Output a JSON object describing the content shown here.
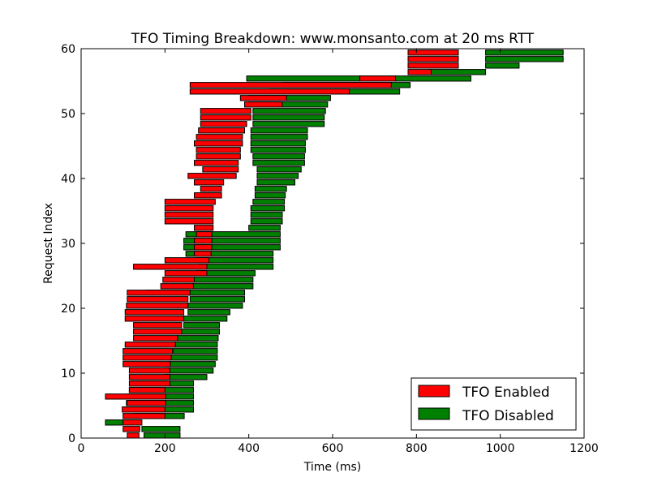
{
  "chart_data": {
    "type": "bar",
    "orientation": "horizontal",
    "title": "TFO Timing Breakdown: www.monsanto.com at 20 ms RTT",
    "xlabel": "Time (ms)",
    "ylabel": "Request Index",
    "xlim": [
      0,
      1200
    ],
    "ylim": [
      0,
      60
    ],
    "xticks": [
      0,
      200,
      400,
      600,
      800,
      1000,
      1200
    ],
    "yticks": [
      0,
      10,
      20,
      30,
      40,
      50,
      60
    ],
    "grid": false,
    "legend_position": "bottom-right",
    "series": [
      {
        "name": "TFO Disabled",
        "color": "#008000",
        "bars": [
          [
            0,
            150,
            236
          ],
          [
            1,
            145,
            236
          ],
          [
            2,
            58,
            100
          ],
          [
            3,
            125,
            246
          ],
          [
            4,
            100,
            268
          ],
          [
            5,
            108,
            268
          ],
          [
            6,
            110,
            268
          ],
          [
            7,
            115,
            268
          ],
          [
            8,
            120,
            268
          ],
          [
            9,
            200,
            300
          ],
          [
            10,
            205,
            315
          ],
          [
            11,
            210,
            320
          ],
          [
            12,
            215,
            325
          ],
          [
            13,
            220,
            325
          ],
          [
            14,
            225,
            325
          ],
          [
            15,
            230,
            327
          ],
          [
            16,
            240,
            330
          ],
          [
            17,
            245,
            330
          ],
          [
            18,
            240,
            348
          ],
          [
            19,
            255,
            355
          ],
          [
            20,
            255,
            385
          ],
          [
            21,
            260,
            390
          ],
          [
            22,
            155,
            390
          ],
          [
            23,
            265,
            410
          ],
          [
            24,
            270,
            410
          ],
          [
            25,
            275,
            415
          ],
          [
            26,
            280,
            458
          ],
          [
            27,
            275,
            458
          ],
          [
            28,
            250,
            458
          ],
          [
            29,
            245,
            475
          ],
          [
            30,
            245,
            475
          ],
          [
            31,
            250,
            475
          ],
          [
            32,
            400,
            475
          ],
          [
            33,
            405,
            480
          ],
          [
            34,
            405,
            480
          ],
          [
            35,
            405,
            485
          ],
          [
            36,
            410,
            485
          ],
          [
            37,
            415,
            487
          ],
          [
            38,
            415,
            490
          ],
          [
            39,
            420,
            510
          ],
          [
            40,
            420,
            518
          ],
          [
            41,
            420,
            525
          ],
          [
            42,
            410,
            533
          ],
          [
            43,
            410,
            533
          ],
          [
            44,
            405,
            535
          ],
          [
            45,
            405,
            535
          ],
          [
            46,
            405,
            540
          ],
          [
            47,
            405,
            540
          ],
          [
            48,
            410,
            580
          ],
          [
            49,
            410,
            580
          ],
          [
            50,
            410,
            583
          ],
          [
            51,
            400,
            588
          ],
          [
            52,
            400,
            595
          ],
          [
            53,
            450,
            760
          ],
          [
            54,
            480,
            785
          ],
          [
            55,
            395,
            930
          ],
          [
            56,
            830,
            965
          ],
          [
            57,
            965,
            1045
          ],
          [
            58,
            965,
            1150
          ],
          [
            59,
            965,
            1150
          ]
        ]
      },
      {
        "name": "TFO Enabled",
        "color": "#ff0000",
        "bars": [
          [
            0,
            110,
            138
          ],
          [
            1,
            100,
            140
          ],
          [
            2,
            100,
            145
          ],
          [
            3,
            100,
            200
          ],
          [
            4,
            98,
            200
          ],
          [
            5,
            110,
            202
          ],
          [
            6,
            58,
            202
          ],
          [
            7,
            115,
            200
          ],
          [
            8,
            115,
            212
          ],
          [
            9,
            115,
            212
          ],
          [
            10,
            115,
            212
          ],
          [
            11,
            100,
            213
          ],
          [
            12,
            100,
            215
          ],
          [
            13,
            100,
            218
          ],
          [
            14,
            105,
            225
          ],
          [
            15,
            125,
            230
          ],
          [
            16,
            125,
            240
          ],
          [
            17,
            125,
            240
          ],
          [
            18,
            105,
            245
          ],
          [
            19,
            105,
            245
          ],
          [
            20,
            108,
            255
          ],
          [
            21,
            110,
            255
          ],
          [
            22,
            110,
            260
          ],
          [
            23,
            190,
            268
          ],
          [
            24,
            195,
            270
          ],
          [
            25,
            200,
            300
          ],
          [
            26,
            125,
            300
          ],
          [
            27,
            200,
            305
          ],
          [
            28,
            270,
            310
          ],
          [
            29,
            270,
            312
          ],
          [
            30,
            270,
            312
          ],
          [
            31,
            275,
            312
          ],
          [
            32,
            270,
            315
          ],
          [
            33,
            200,
            315
          ],
          [
            34,
            200,
            315
          ],
          [
            35,
            200,
            315
          ],
          [
            36,
            200,
            320
          ],
          [
            37,
            270,
            335
          ],
          [
            38,
            285,
            335
          ],
          [
            39,
            270,
            340
          ],
          [
            40,
            255,
            370
          ],
          [
            41,
            290,
            375
          ],
          [
            42,
            270,
            375
          ],
          [
            43,
            275,
            380
          ],
          [
            44,
            275,
            380
          ],
          [
            45,
            270,
            385
          ],
          [
            46,
            275,
            385
          ],
          [
            47,
            280,
            390
          ],
          [
            48,
            285,
            395
          ],
          [
            49,
            285,
            405
          ],
          [
            50,
            285,
            405
          ],
          [
            51,
            390,
            480
          ],
          [
            52,
            380,
            490
          ],
          [
            53,
            260,
            640
          ],
          [
            54,
            260,
            740
          ],
          [
            55,
            665,
            750
          ],
          [
            56,
            780,
            835
          ],
          [
            57,
            780,
            900
          ],
          [
            58,
            780,
            900
          ],
          [
            59,
            780,
            900
          ]
        ]
      }
    ]
  }
}
